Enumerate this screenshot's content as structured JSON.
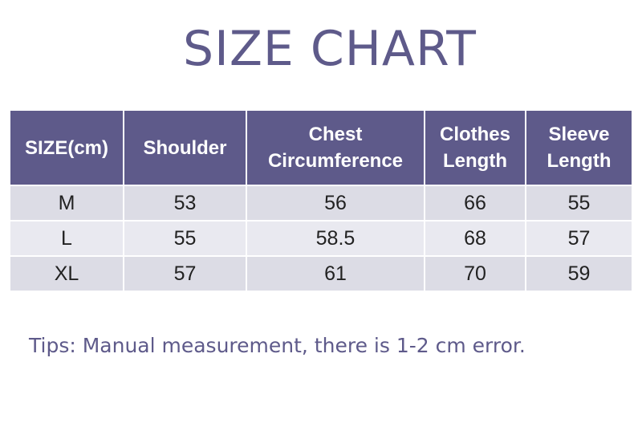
{
  "title": "SIZE CHART",
  "table": {
    "headers": [
      {
        "line1": "SIZE(cm)",
        "line2": ""
      },
      {
        "line1": "Shoulder",
        "line2": ""
      },
      {
        "line1": "Chest",
        "line2": "Circumference"
      },
      {
        "line1": "Clothes",
        "line2": "Length"
      },
      {
        "line1": "Sleeve",
        "line2": "Length"
      }
    ],
    "rows": [
      [
        "M",
        "53",
        "56",
        "66",
        "55"
      ],
      [
        "L",
        "55",
        "58.5",
        "68",
        "57"
      ],
      [
        "XL",
        "57",
        "61",
        "70",
        "59"
      ]
    ]
  },
  "tips": "Tips: Manual measurement, there is 1-2 cm error.",
  "colors": {
    "accent": "#5e5a8a",
    "row_dark": "#dcdce5",
    "row_light": "#e9e9f0"
  }
}
